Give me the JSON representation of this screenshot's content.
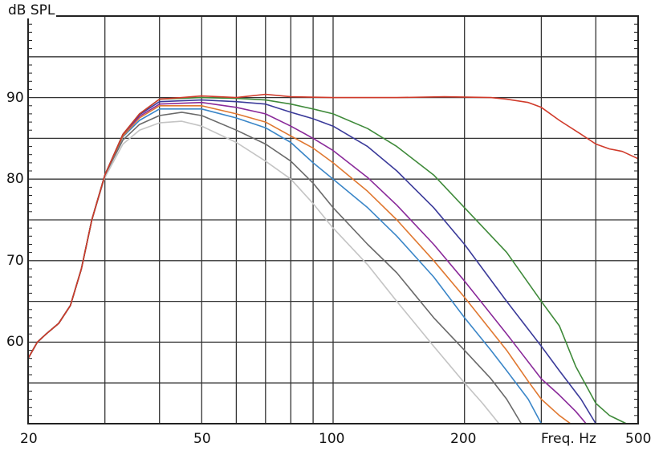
{
  "chart_data": {
    "type": "line",
    "title": "",
    "xlabel": "Freq. Hz",
    "ylabel": "dB SPL",
    "xscale": "log",
    "xlim": [
      20,
      500
    ],
    "ylim": [
      50,
      100
    ],
    "grid": true,
    "x_tick_labels": [
      "20",
      "50",
      "100",
      "200",
      "500"
    ],
    "x_tick_values": [
      20,
      50,
      100,
      200,
      500
    ],
    "x_grid_values": [
      30,
      40,
      50,
      60,
      70,
      80,
      90,
      100,
      200,
      300,
      400
    ],
    "y_tick_labels": [
      "60",
      "70",
      "80",
      "90"
    ],
    "y_tick_values": [
      60,
      70,
      80,
      90
    ],
    "y_grid_values": [
      55,
      60,
      65,
      70,
      75,
      80,
      85,
      90,
      95
    ],
    "legend": null,
    "series": [
      {
        "name": "red",
        "color": "#d03a2a",
        "points": [
          [
            20,
            58
          ],
          [
            21,
            60
          ],
          [
            22,
            61
          ],
          [
            23.5,
            62.3
          ],
          [
            25,
            64.5
          ],
          [
            26.5,
            69
          ],
          [
            28,
            75
          ],
          [
            30,
            80.5
          ],
          [
            33,
            85.5
          ],
          [
            36,
            88
          ],
          [
            40,
            89.8
          ],
          [
            45,
            90
          ],
          [
            50,
            90.2
          ],
          [
            60,
            90
          ],
          [
            70,
            90.4
          ],
          [
            80,
            90.1
          ],
          [
            100,
            90
          ],
          [
            140,
            90
          ],
          [
            180,
            90.1
          ],
          [
            230,
            90
          ],
          [
            250,
            89.8
          ],
          [
            280,
            89.4
          ],
          [
            300,
            88.8
          ],
          [
            330,
            87.2
          ],
          [
            370,
            85.5
          ],
          [
            400,
            84.3
          ],
          [
            430,
            83.7
          ],
          [
            460,
            83.4
          ],
          [
            500,
            82.5
          ]
        ]
      },
      {
        "name": "green",
        "color": "#3f8a3a",
        "points": [
          [
            20,
            58
          ],
          [
            21,
            60
          ],
          [
            22,
            61
          ],
          [
            23.5,
            62.3
          ],
          [
            25,
            64.5
          ],
          [
            26.5,
            69
          ],
          [
            28,
            75
          ],
          [
            30,
            80.5
          ],
          [
            33,
            85.5
          ],
          [
            36,
            88
          ],
          [
            40,
            89.8
          ],
          [
            50,
            90
          ],
          [
            60,
            89.9
          ],
          [
            70,
            89.7
          ],
          [
            80,
            89.2
          ],
          [
            90,
            88.6
          ],
          [
            100,
            88
          ],
          [
            120,
            86.2
          ],
          [
            140,
            84
          ],
          [
            170,
            80.5
          ],
          [
            200,
            76.5
          ],
          [
            250,
            71
          ],
          [
            300,
            65
          ],
          [
            330,
            62
          ],
          [
            360,
            57
          ],
          [
            400,
            52.5
          ],
          [
            430,
            51
          ],
          [
            470,
            50
          ]
        ]
      },
      {
        "name": "navy",
        "color": "#3b3b9a",
        "points": [
          [
            20,
            58
          ],
          [
            21,
            60
          ],
          [
            22,
            61
          ],
          [
            23.5,
            62.3
          ],
          [
            25,
            64.5
          ],
          [
            26.5,
            69
          ],
          [
            28,
            75
          ],
          [
            30,
            80.5
          ],
          [
            33,
            85.5
          ],
          [
            36,
            87.9
          ],
          [
            40,
            89.5
          ],
          [
            50,
            89.7
          ],
          [
            60,
            89.5
          ],
          [
            70,
            89.2
          ],
          [
            80,
            88.2
          ],
          [
            90,
            87.4
          ],
          [
            100,
            86.5
          ],
          [
            120,
            84
          ],
          [
            140,
            81
          ],
          [
            170,
            76.5
          ],
          [
            200,
            72
          ],
          [
            250,
            65
          ],
          [
            300,
            59.5
          ],
          [
            330,
            56.5
          ],
          [
            370,
            53
          ],
          [
            400,
            50
          ]
        ]
      },
      {
        "name": "purple",
        "color": "#8a2a9a",
        "points": [
          [
            20,
            58
          ],
          [
            21,
            60
          ],
          [
            22,
            61
          ],
          [
            23.5,
            62.3
          ],
          [
            25,
            64.5
          ],
          [
            26.5,
            69
          ],
          [
            28,
            75
          ],
          [
            30,
            80.5
          ],
          [
            33,
            85.5
          ],
          [
            36,
            87.7
          ],
          [
            40,
            89.2
          ],
          [
            50,
            89.4
          ],
          [
            60,
            88.8
          ],
          [
            70,
            88
          ],
          [
            80,
            86.5
          ],
          [
            90,
            85
          ],
          [
            100,
            83.5
          ],
          [
            120,
            80.2
          ],
          [
            140,
            76.8
          ],
          [
            170,
            72
          ],
          [
            200,
            67.5
          ],
          [
            250,
            61
          ],
          [
            300,
            55.5
          ],
          [
            330,
            53.5
          ],
          [
            360,
            51.5
          ],
          [
            380,
            50
          ]
        ]
      },
      {
        "name": "orange",
        "color": "#e07830",
        "points": [
          [
            20,
            58
          ],
          [
            21,
            60
          ],
          [
            22,
            61
          ],
          [
            23.5,
            62.3
          ],
          [
            25,
            64.5
          ],
          [
            26.5,
            69
          ],
          [
            28,
            75
          ],
          [
            30,
            80.5
          ],
          [
            33,
            85.3
          ],
          [
            36,
            87.5
          ],
          [
            40,
            89
          ],
          [
            50,
            89
          ],
          [
            60,
            88
          ],
          [
            70,
            87
          ],
          [
            80,
            85.3
          ],
          [
            90,
            83.8
          ],
          [
            100,
            82
          ],
          [
            120,
            78.5
          ],
          [
            140,
            75
          ],
          [
            170,
            70
          ],
          [
            200,
            65.5
          ],
          [
            250,
            59
          ],
          [
            280,
            55.2
          ],
          [
            300,
            53
          ],
          [
            330,
            51
          ],
          [
            350,
            50
          ]
        ]
      },
      {
        "name": "blue",
        "color": "#3a86c8",
        "points": [
          [
            20,
            58
          ],
          [
            21,
            60
          ],
          [
            22,
            61
          ],
          [
            23.5,
            62.3
          ],
          [
            25,
            64.5
          ],
          [
            26.5,
            69
          ],
          [
            28,
            75
          ],
          [
            30,
            80.5
          ],
          [
            33,
            85.2
          ],
          [
            36,
            87.2
          ],
          [
            40,
            88.6
          ],
          [
            50,
            88.6
          ],
          [
            60,
            87.5
          ],
          [
            70,
            86.3
          ],
          [
            80,
            84.5
          ],
          [
            90,
            82
          ],
          [
            100,
            80
          ],
          [
            120,
            76.5
          ],
          [
            140,
            73
          ],
          [
            170,
            68
          ],
          [
            200,
            63
          ],
          [
            230,
            59
          ],
          [
            250,
            56.5
          ],
          [
            280,
            53
          ],
          [
            300,
            50
          ]
        ]
      },
      {
        "name": "dark-gray",
        "color": "#6a6a6a",
        "points": [
          [
            20,
            58
          ],
          [
            21,
            60
          ],
          [
            22,
            61
          ],
          [
            23.5,
            62.3
          ],
          [
            25,
            64.5
          ],
          [
            26.5,
            69
          ],
          [
            28,
            75
          ],
          [
            30,
            80.5
          ],
          [
            33,
            84.8
          ],
          [
            36,
            86.7
          ],
          [
            40,
            87.8
          ],
          [
            45,
            88.2
          ],
          [
            50,
            87.8
          ],
          [
            60,
            86
          ],
          [
            70,
            84.3
          ],
          [
            80,
            82.2
          ],
          [
            90,
            79.5
          ],
          [
            100,
            76.5
          ],
          [
            120,
            72
          ],
          [
            140,
            68.5
          ],
          [
            170,
            63
          ],
          [
            200,
            59
          ],
          [
            230,
            55.5
          ],
          [
            250,
            53
          ],
          [
            270,
            50
          ]
        ]
      },
      {
        "name": "light-gray",
        "color": "#c4c4c4",
        "points": [
          [
            20,
            58
          ],
          [
            21,
            60
          ],
          [
            22,
            61
          ],
          [
            23.5,
            62.3
          ],
          [
            25,
            64.5
          ],
          [
            26.5,
            69
          ],
          [
            28,
            75
          ],
          [
            30,
            80.2
          ],
          [
            33,
            84.3
          ],
          [
            36,
            86
          ],
          [
            40,
            86.9
          ],
          [
            45,
            87.1
          ],
          [
            50,
            86.5
          ],
          [
            60,
            84.5
          ],
          [
            70,
            82.2
          ],
          [
            80,
            80
          ],
          [
            90,
            77
          ],
          [
            100,
            74
          ],
          [
            120,
            69.5
          ],
          [
            140,
            65
          ],
          [
            170,
            59.5
          ],
          [
            200,
            55
          ],
          [
            220,
            52.5
          ],
          [
            240,
            50
          ]
        ]
      }
    ]
  },
  "axes": {
    "y_unit_label": "dB SPL",
    "x_unit_label": "Freq. Hz"
  }
}
